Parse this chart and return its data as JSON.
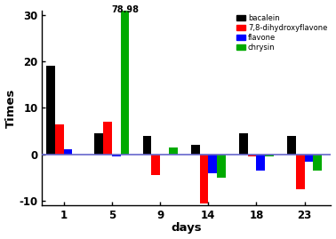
{
  "days": [
    1,
    5,
    9,
    14,
    18,
    23
  ],
  "bacalein": [
    19,
    4.5,
    4,
    2,
    4.5,
    4
  ],
  "dihydroxyflavone": [
    6.5,
    7,
    -4.5,
    -10.5,
    -0.5,
    -7.5
  ],
  "flavone": [
    1,
    -0.5,
    0,
    -4,
    -3.5,
    -1.5
  ],
  "chrysin": [
    0,
    78.98,
    1.5,
    -5,
    -0.5,
    -3.5
  ],
  "colors": {
    "bacalein": "#000000",
    "dihydroxyflavone": "#ff0000",
    "flavone": "#0000ff",
    "chrysin": "#00aa00"
  },
  "legend_labels": [
    "bacalein",
    "7,8-dihydroxyflavone",
    "flavone",
    "chrysin"
  ],
  "ylim": [
    -11,
    31
  ],
  "yticks": [
    -10,
    0,
    10,
    20,
    30
  ],
  "xlabel": "days",
  "ylabel": "Times",
  "bar_width": 0.18,
  "annotation_text": "78.98",
  "hline_color": "#6666cc",
  "hline_lw": 1.2
}
